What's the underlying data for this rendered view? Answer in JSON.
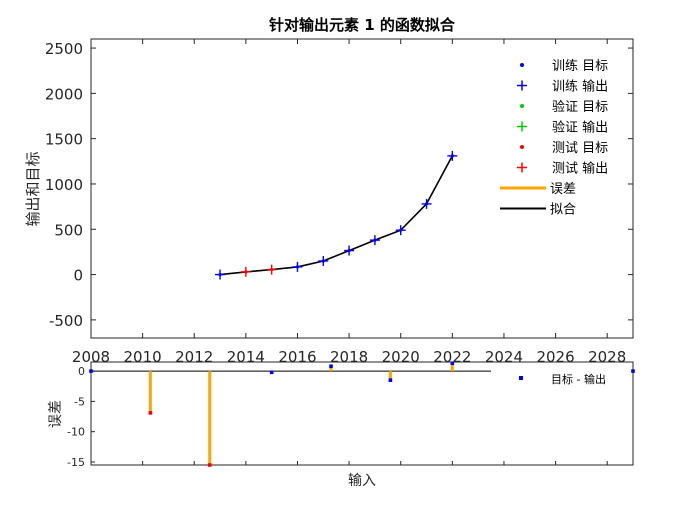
{
  "chart_data": [
    {
      "type": "scatter",
      "title": "针对输出元素 1 的函数拟合",
      "ylabel": "输出和目标",
      "xlim": [
        2008,
        2029
      ],
      "ylim": [
        -700,
        2600
      ],
      "xticks": [
        2008,
        2010,
        2012,
        2014,
        2016,
        2018,
        2020,
        2022,
        2024,
        2026,
        2028
      ],
      "yticks": [
        -500,
        0,
        500,
        1000,
        1500,
        2000,
        2500
      ],
      "legend_position": "top-right",
      "legend": [
        {
          "label": "训练 目标",
          "marker": "dot",
          "color": "#0000ff"
        },
        {
          "label": "训练 输出",
          "marker": "plus",
          "color": "#0000ff"
        },
        {
          "label": "验证 目标",
          "marker": "dot",
          "color": "#00cc00"
        },
        {
          "label": "验证 输出",
          "marker": "plus",
          "color": "#00cc00"
        },
        {
          "label": "测试 目标",
          "marker": "dot",
          "color": "#ff0000"
        },
        {
          "label": "测试 输出",
          "marker": "plus",
          "color": "#ff0000"
        },
        {
          "label": "误差",
          "marker": "line",
          "color": "#ffa500"
        },
        {
          "label": "拟合",
          "marker": "line",
          "color": "#000000"
        }
      ],
      "series": [
        {
          "name": "训练 输出",
          "color": "#0000ff",
          "marker": "plus",
          "x": [
            2013,
            2016,
            2017,
            2018,
            2019,
            2020,
            2021,
            2022
          ],
          "y": [
            0,
            85,
            150,
            265,
            380,
            490,
            780,
            1310
          ]
        },
        {
          "name": "测试 输出",
          "color": "#ff0000",
          "marker": "plus",
          "x": [
            2014,
            2015
          ],
          "y": [
            30,
            55
          ]
        },
        {
          "name": "拟合",
          "color": "#000000",
          "marker": "line",
          "x": [
            2013,
            2014,
            2015,
            2016,
            2017,
            2018,
            2019,
            2020,
            2021,
            2022
          ],
          "y": [
            0,
            30,
            55,
            85,
            150,
            265,
            380,
            490,
            780,
            1310
          ]
        }
      ]
    },
    {
      "type": "bar",
      "ylabel": "误差",
      "xlabel": "输入",
      "xlim": [
        2008,
        2029
      ],
      "ylim": [
        -15.5,
        1.5
      ],
      "yticks": [
        0,
        -5,
        -10,
        -15
      ],
      "legend_position": "top-right",
      "legend": [
        {
          "label": "目标 - 输出",
          "marker": "square",
          "color": "#0000ff"
        }
      ],
      "series": [
        {
          "name": "误差",
          "color": "#ffa500",
          "x": [
            2008,
            2010.3,
            2012.6,
            2015,
            2017.3,
            2019.6,
            2022,
            2029
          ],
          "y": [
            0,
            -6.9,
            -15.5,
            -0.2,
            0.8,
            -1.5,
            1.3,
            0
          ],
          "point_colors": [
            "#0000ff",
            "#ff0000",
            "#ff0000",
            "#0000ff",
            "#0000ff",
            "#0000ff",
            "#0000ff",
            "#0000ff"
          ]
        }
      ]
    }
  ]
}
